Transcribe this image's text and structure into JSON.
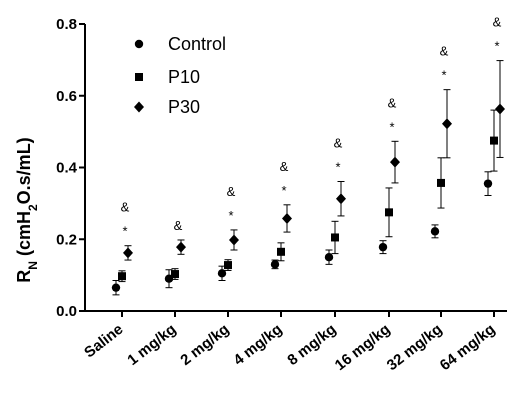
{
  "chart_data": {
    "type": "scatter",
    "ylabel": "RN (cmH2O.s/mL)",
    "ylabel_main": "R",
    "ylabel_sub": "N",
    "ylabel_unit_a": " (cmH",
    "ylabel_unit_sub": "2",
    "ylabel_unit_b": "O.s/mL)",
    "ylim": [
      0.0,
      0.8
    ],
    "yticks": [
      "0.0",
      "0.2",
      "0.4",
      "0.6",
      "0.8"
    ],
    "ytick_values": [
      0.0,
      0.2,
      0.4,
      0.6,
      0.8
    ],
    "categories": [
      "Saline",
      "1 mg/kg",
      "2 mg/kg",
      "4 mg/kg",
      "8 mg/kg",
      "16 mg/kg",
      "32 mg/kg",
      "64 mg/kg"
    ],
    "legend_position": "top-left",
    "series": [
      {
        "name": "Control",
        "marker": "circle",
        "values": [
          0.065,
          0.09,
          0.105,
          0.13,
          0.15,
          0.178,
          0.222,
          0.355
        ],
        "errors": [
          0.02,
          0.025,
          0.02,
          0.012,
          0.02,
          0.018,
          0.018,
          0.033
        ]
      },
      {
        "name": "P10",
        "marker": "square",
        "values": [
          0.097,
          0.103,
          0.128,
          0.165,
          0.205,
          0.275,
          0.357,
          0.475
        ],
        "errors": [
          0.015,
          0.015,
          0.015,
          0.025,
          0.045,
          0.068,
          0.07,
          0.085
        ]
      },
      {
        "name": "P30",
        "marker": "diamond",
        "values": [
          0.162,
          0.178,
          0.198,
          0.258,
          0.313,
          0.415,
          0.522,
          0.563
        ],
        "errors": [
          0.02,
          0.02,
          0.028,
          0.038,
          0.048,
          0.058,
          0.095,
          0.135
        ]
      }
    ],
    "annotations": [
      {
        "category": "Saline",
        "text": [
          "&",
          "*"
        ]
      },
      {
        "category": "1 mg/kg",
        "text": [
          "&"
        ]
      },
      {
        "category": "2 mg/kg",
        "text": [
          "&",
          "*"
        ]
      },
      {
        "category": "4 mg/kg",
        "text": [
          "&",
          "*"
        ]
      },
      {
        "category": "8 mg/kg",
        "text": [
          "&",
          "*"
        ]
      },
      {
        "category": "16 mg/kg",
        "text": [
          "&",
          "*"
        ]
      },
      {
        "category": "32 mg/kg",
        "text": [
          "&",
          "*"
        ]
      },
      {
        "category": "64 mg/kg",
        "text": [
          "&",
          "*"
        ]
      }
    ]
  }
}
